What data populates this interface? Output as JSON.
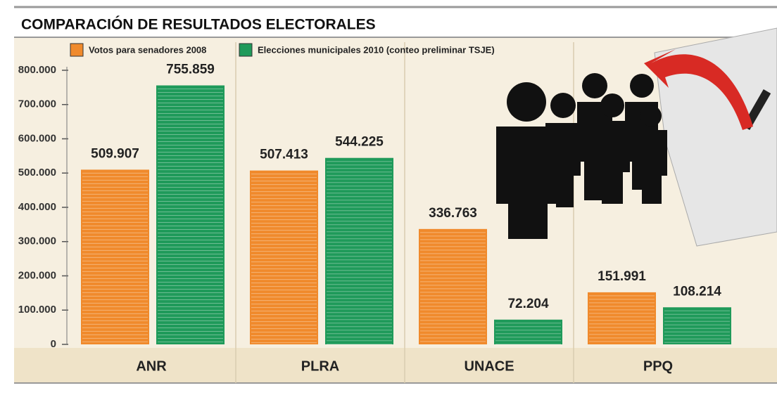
{
  "chart_data": {
    "type": "bar",
    "title": "COMPARACIÓN DE RESULTADOS ELECTORALES",
    "categories": [
      "ANR",
      "PLRA",
      "UNACE",
      "PPQ"
    ],
    "series": [
      {
        "name": "Votos para senadores 2008",
        "color": "#f08a2c",
        "values": [
          509907,
          507413,
          336763,
          151991
        ],
        "value_labels": [
          "509.907",
          "507.413",
          "336.763",
          "151.991"
        ]
      },
      {
        "name": "Elecciones municipales 2010 (conteo preliminar TSJE)",
        "color": "#1f9a5a",
        "values": [
          755859,
          544225,
          72204,
          108214
        ],
        "value_labels": [
          "755.859",
          "544.225",
          "72.204",
          "108.214"
        ]
      }
    ],
    "ylim": [
      0,
      800000
    ],
    "yticks": [
      0,
      {
        "value": 100000,
        "label": "100.000"
      },
      {
        "value": 200000,
        "label": "200.000"
      },
      {
        "value": 300000,
        "label": "300.000"
      },
      {
        "value": 400000,
        "label": "400.000"
      },
      {
        "value": 500000,
        "label": "500.000"
      },
      {
        "value": 600000,
        "label": "600.000"
      },
      {
        "value": 700000,
        "label": "700.000"
      },
      {
        "value": 800000,
        "label": "800.000"
      }
    ]
  }
}
